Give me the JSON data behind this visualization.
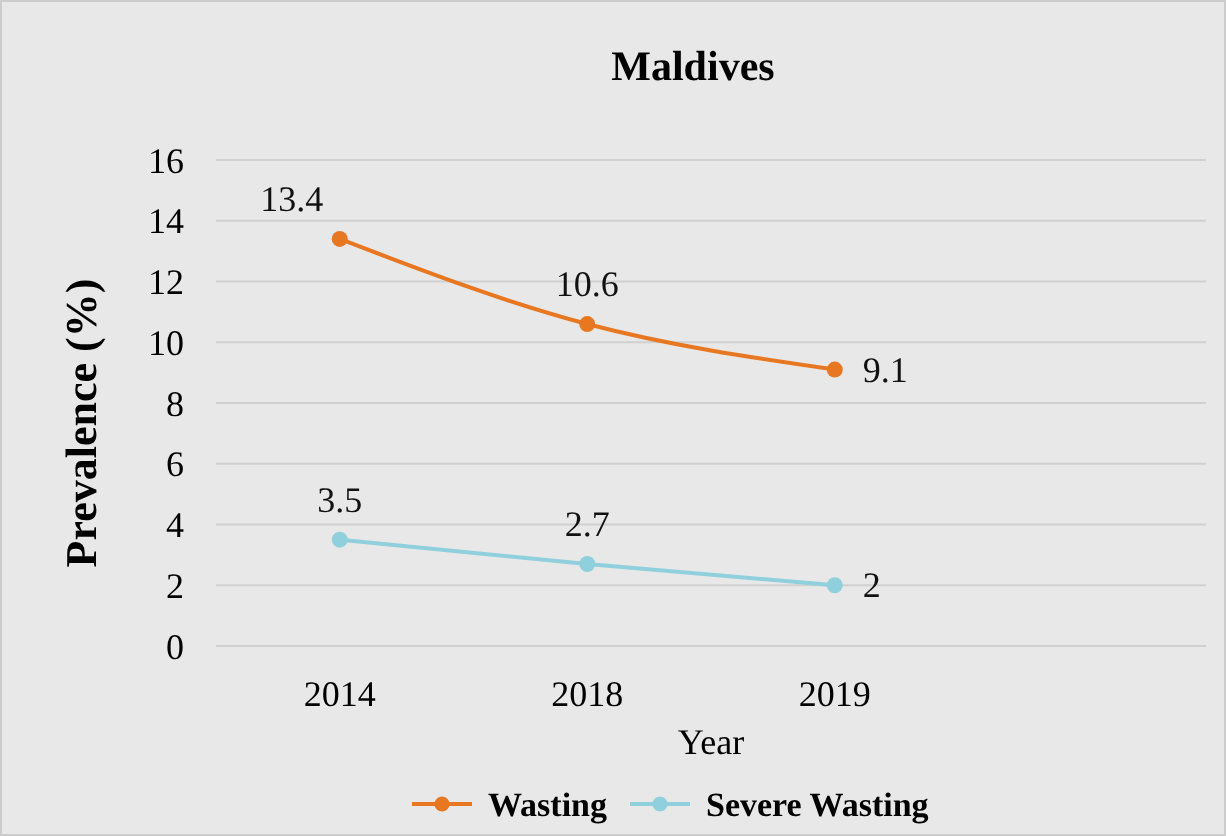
{
  "chart_data": {
    "type": "line",
    "title": "Maldives",
    "xlabel": "Year",
    "ylabel": "Prevalence (%)",
    "categories": [
      "2014",
      "2018",
      "2019",
      null
    ],
    "ylim": [
      0,
      16
    ],
    "yticks": [
      0,
      2,
      4,
      6,
      8,
      10,
      12,
      14,
      16
    ],
    "grid": "y",
    "legend": "bottom",
    "marker": "circle",
    "data_labels": true,
    "series": [
      {
        "name": "Wasting",
        "color": "#e87722",
        "values": [
          13.4,
          10.6,
          9.1,
          null
        ]
      },
      {
        "name": "Severe Wasting",
        "color": "#8fd0dc",
        "values": [
          3.5,
          2.7,
          2,
          null
        ]
      }
    ]
  }
}
